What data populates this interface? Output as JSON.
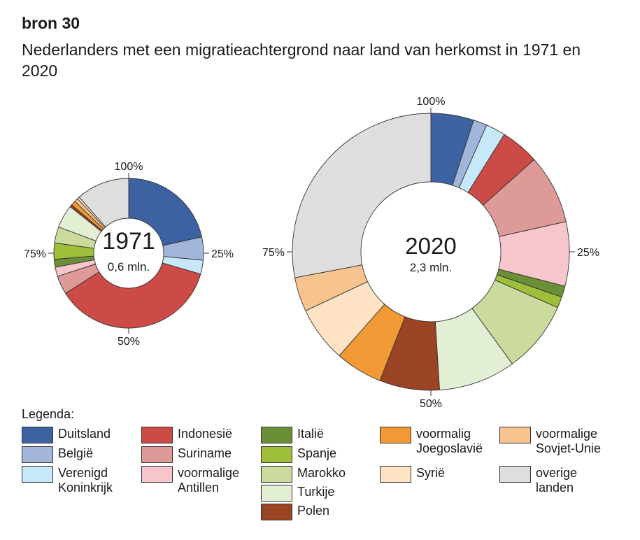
{
  "source_label": "bron 30",
  "title": "Nederlanders met een migratieachtergrond naar land van herkomst in 1971 en 2020",
  "legend_title": "Legenda:",
  "colors": {
    "Duitsland": "#3d62a1",
    "België": "#a2b5db",
    "Verenigd Koninkrijk": "#c7e8f8",
    "Indonesië": "#cc4b47",
    "Suriname": "#dd9a97",
    "voormalige Antillen": "#f7c5cc",
    "Italië": "#6b8f36",
    "Spanje": "#9fbf3b",
    "Marokko": "#cbdb9d",
    "Turkije": "#e3efd4",
    "Polen": "#9b4423",
    "voormalig Joegoslavië": "#f09935",
    "voormalige Sovjet-Unie": "#f7c48f",
    "Syrië": "#fde3c3",
    "overige landen": "#dedede"
  },
  "legend": [
    "Duitsland",
    "België",
    "Verenigd Koninkrijk",
    "Indonesië",
    "Suriname",
    "voormalige Antillen",
    "Italië",
    "Spanje",
    "Marokko",
    "Turkije",
    "Polen",
    "voormalig Joegoslavië",
    "voormalige Sovjet-Unie",
    "Syrië",
    "overige landen"
  ],
  "chart_data": [
    {
      "type": "pie",
      "center_label": "1971",
      "center_sublabel": "0,6 mln.",
      "tick_labels": [
        "100%",
        "25%",
        "50%",
        "75%"
      ],
      "unit": "%",
      "slices": [
        {
          "name": "Duitsland",
          "value": 21.5
        },
        {
          "name": "België",
          "value": 5
        },
        {
          "name": "Verenigd Koninkrijk",
          "value": 3
        },
        {
          "name": "Indonesië",
          "value": 36.5
        },
        {
          "name": "Suriname",
          "value": 4
        },
        {
          "name": "voormalige Antillen",
          "value": 2
        },
        {
          "name": "Italië",
          "value": 1.7
        },
        {
          "name": "Spanje",
          "value": 3.5
        },
        {
          "name": "Marokko",
          "value": 3.5
        },
        {
          "name": "Turkije",
          "value": 5
        },
        {
          "name": "Polen",
          "value": 0.5
        },
        {
          "name": "voormalig Joegoslavië",
          "value": 1
        },
        {
          "name": "voormalige Sovjet-Unie",
          "value": 0.8
        },
        {
          "name": "Syrië",
          "value": 0.5
        },
        {
          "name": "overige landen",
          "value": 11.5
        }
      ]
    },
    {
      "type": "pie",
      "center_label": "2020",
      "center_sublabel": "2,3 mln.",
      "tick_labels": [
        "100%",
        "25%",
        "50%",
        "75%"
      ],
      "unit": "%",
      "slices": [
        {
          "name": "Duitsland",
          "value": 5
        },
        {
          "name": "België",
          "value": 1.6
        },
        {
          "name": "Verenigd Koninkrijk",
          "value": 2.3
        },
        {
          "name": "Indonesië",
          "value": 4.5
        },
        {
          "name": "Suriname",
          "value": 8.1
        },
        {
          "name": "voormalige Antillen",
          "value": 7.5
        },
        {
          "name": "Italië",
          "value": 1.3
        },
        {
          "name": "Spanje",
          "value": 1.3
        },
        {
          "name": "Marokko",
          "value": 8.4
        },
        {
          "name": "Turkije",
          "value": 9
        },
        {
          "name": "Polen",
          "value": 7
        },
        {
          "name": "voormalig Joegoslavië",
          "value": 5.5
        },
        {
          "name": "Syrië",
          "value": 6.5
        },
        {
          "name": "voormalige Sovjet-Unie",
          "value": 4
        },
        {
          "name": "overige landen",
          "value": 28
        }
      ]
    }
  ]
}
